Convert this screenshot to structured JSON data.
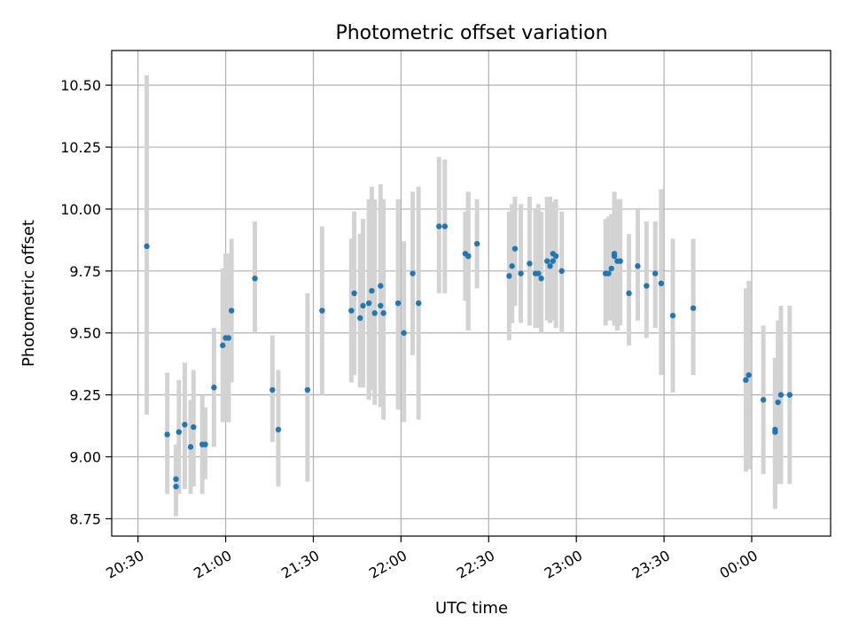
{
  "chart_data": {
    "type": "scatter",
    "title": "Photometric offset variation",
    "xlabel": "UTC time",
    "ylabel": "Photometric offset",
    "grid": true,
    "xlim": [
      "20:21",
      "00:27"
    ],
    "ylim": [
      8.68,
      10.64
    ],
    "x_ticks": [
      "20:30",
      "21:00",
      "21:30",
      "22:00",
      "22:30",
      "23:00",
      "23:30",
      "00:00"
    ],
    "y_ticks": [
      "8.75",
      "9.00",
      "9.25",
      "9.50",
      "9.75",
      "10.00",
      "10.25",
      "10.50"
    ],
    "colors": {
      "point": "#1f77b4",
      "errorbar": "#d3d3d3"
    },
    "series": [
      {
        "x": [
          "20:33",
          "20:40",
          "20:43",
          "20:43",
          "20:44",
          "20:46",
          "20:48",
          "20:49",
          "20:52",
          "20:53",
          "20:56",
          "20:59",
          "21:00",
          "21:01",
          "21:02",
          "21:10",
          "21:16",
          "21:18",
          "21:28",
          "21:33",
          "21:43",
          "21:44",
          "21:46",
          "21:47",
          "21:49",
          "21:50",
          "21:51",
          "21:53",
          "21:53",
          "21:54",
          "21:59",
          "22:01",
          "22:04",
          "22:06",
          "22:13",
          "22:15",
          "22:22",
          "22:23",
          "22:23",
          "22:26",
          "22:37",
          "22:38",
          "22:39",
          "22:41",
          "22:44",
          "22:46",
          "22:47",
          "22:48",
          "22:50",
          "22:51",
          "22:52",
          "22:52",
          "22:53",
          "22:55",
          "23:10",
          "23:11",
          "23:12",
          "23:13",
          "23:13",
          "23:14",
          "23:15",
          "23:18",
          "23:21",
          "23:24",
          "23:27",
          "23:29",
          "23:33",
          "23:40",
          "23:58",
          "23:59",
          "00:04",
          "00:08",
          "00:08",
          "00:09",
          "00:10",
          "00:13"
        ],
        "y": [
          9.85,
          9.09,
          8.88,
          8.91,
          9.1,
          9.13,
          9.04,
          9.12,
          9.05,
          9.05,
          9.28,
          9.45,
          9.48,
          9.48,
          9.59,
          9.72,
          9.27,
          9.11,
          9.27,
          9.59,
          9.59,
          9.66,
          9.56,
          9.61,
          9.62,
          9.67,
          9.58,
          9.61,
          9.69,
          9.58,
          9.62,
          9.5,
          9.74,
          9.62,
          9.93,
          9.93,
          9.82,
          9.81,
          9.81,
          9.86,
          9.73,
          9.77,
          9.84,
          9.74,
          9.78,
          9.74,
          9.74,
          9.72,
          9.79,
          9.77,
          9.82,
          9.79,
          9.81,
          9.75,
          9.74,
          9.74,
          9.76,
          9.82,
          9.81,
          9.79,
          9.79,
          9.66,
          9.77,
          9.69,
          9.74,
          9.7,
          9.57,
          9.6,
          9.31,
          9.33,
          9.23,
          9.11,
          9.1,
          9.22,
          9.25,
          9.25
        ],
        "yerr_low": [
          9.17,
          8.85,
          8.76,
          8.77,
          8.85,
          8.87,
          8.85,
          8.88,
          8.85,
          8.91,
          9.04,
          9.14,
          9.14,
          9.14,
          9.3,
          9.5,
          9.06,
          8.88,
          8.9,
          9.25,
          9.3,
          9.33,
          9.28,
          9.28,
          9.23,
          9.27,
          9.21,
          9.2,
          9.28,
          9.15,
          9.19,
          9.14,
          9.41,
          9.15,
          9.66,
          9.66,
          9.63,
          9.51,
          9.51,
          9.68,
          9.47,
          9.54,
          9.61,
          9.54,
          9.53,
          9.52,
          9.52,
          9.5,
          9.55,
          9.54,
          9.55,
          9.56,
          9.52,
          9.5,
          9.53,
          9.55,
          9.55,
          9.53,
          9.53,
          9.51,
          9.53,
          9.45,
          9.55,
          9.48,
          9.52,
          9.33,
          9.26,
          9.33,
          8.94,
          8.95,
          8.93,
          8.84,
          8.79,
          8.89,
          8.89,
          8.89
        ],
        "yerr_high": [
          10.54,
          9.34,
          9.05,
          9.05,
          9.31,
          9.38,
          9.23,
          9.35,
          9.25,
          9.2,
          9.52,
          9.76,
          9.82,
          9.82,
          9.88,
          9.95,
          9.49,
          9.35,
          9.66,
          9.93,
          9.88,
          9.99,
          9.9,
          9.96,
          10.04,
          10.09,
          10.04,
          10.02,
          10.1,
          10.04,
          10.04,
          9.87,
          10.07,
          10.09,
          10.21,
          10.2,
          9.99,
          10.07,
          10.07,
          10.04,
          9.99,
          10.02,
          10.05,
          10.02,
          10.05,
          10.0,
          10.02,
          9.99,
          10.05,
          10.05,
          10.03,
          10.03,
          10.04,
          9.99,
          9.96,
          9.97,
          9.98,
          10.07,
          10.06,
          10.04,
          10.04,
          9.9,
          10.0,
          9.95,
          9.95,
          10.08,
          9.88,
          9.88,
          9.68,
          9.71,
          9.53,
          9.4,
          9.4,
          9.55,
          9.61,
          9.61
        ]
      }
    ]
  }
}
